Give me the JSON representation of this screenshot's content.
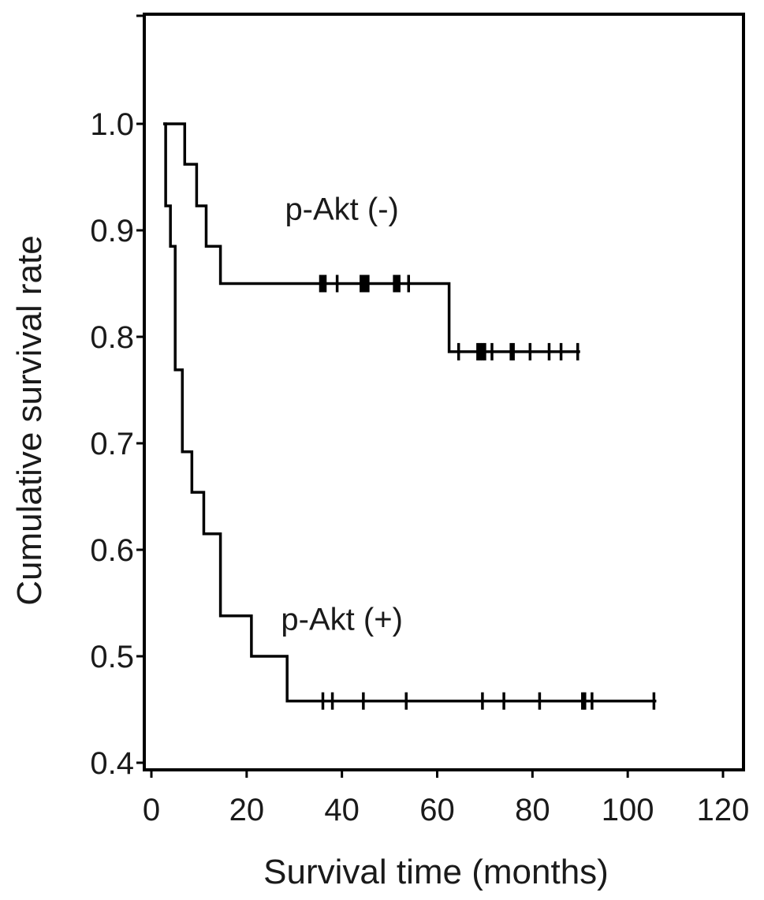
{
  "chart_data": {
    "type": "line",
    "title": "",
    "xlabel": "Survival time (months)",
    "ylabel": "Cumulative survival rate",
    "xlim": [
      0,
      120
    ],
    "ylim": [
      0.4,
      1.0
    ],
    "x_ticks": [
      0,
      20,
      40,
      60,
      80,
      100,
      120
    ],
    "y_ticks": [
      0.4,
      0.5,
      0.6,
      0.7,
      0.8,
      0.9,
      1.0
    ],
    "x_tick_labels": [
      "0",
      "20",
      "40",
      "60",
      "80",
      "100",
      "120"
    ],
    "y_tick_labels": [
      "0.4",
      "0.5",
      "0.6",
      "0.7",
      "0.8",
      "0.9",
      "1.0"
    ],
    "grid": false,
    "series": [
      {
        "name": "p-Akt (-)",
        "color": "#000000",
        "steps": [
          [
            2.5,
            1.0
          ],
          [
            7.0,
            0.962
          ],
          [
            9.5,
            0.923
          ],
          [
            11.5,
            0.885
          ],
          [
            14.5,
            0.85
          ],
          [
            62.5,
            0.786
          ],
          [
            90.0,
            0.786
          ]
        ],
        "censored": [
          35.5,
          36.0,
          36.5,
          39.0,
          44.0,
          44.5,
          45.0,
          45.5,
          51.0,
          51.5,
          52.0,
          54.0,
          64.5,
          68.5,
          69.0,
          69.5,
          70.0,
          71.5,
          75.5,
          76.0,
          79.5,
          83.5,
          86.0,
          89.5
        ]
      },
      {
        "name": "p-Akt (+)",
        "color": "#000000",
        "steps": [
          [
            2.5,
            1.0
          ],
          [
            3.0,
            0.923
          ],
          [
            4.0,
            0.885
          ],
          [
            5.0,
            0.769
          ],
          [
            6.5,
            0.692
          ],
          [
            8.5,
            0.654
          ],
          [
            11.0,
            0.615
          ],
          [
            14.5,
            0.538
          ],
          [
            21.0,
            0.5
          ],
          [
            28.5,
            0.458
          ],
          [
            106.0,
            0.458
          ]
        ],
        "censored": [
          36.0,
          38.0,
          44.5,
          53.5,
          69.5,
          74.0,
          81.5,
          90.5,
          91.0,
          92.5,
          105.5
        ]
      }
    ],
    "annotations": [
      {
        "text": "p-Akt (-)",
        "x": 40,
        "y": 0.91
      },
      {
        "text": "p-Akt (+)",
        "x": 40,
        "y": 0.525
      }
    ]
  }
}
